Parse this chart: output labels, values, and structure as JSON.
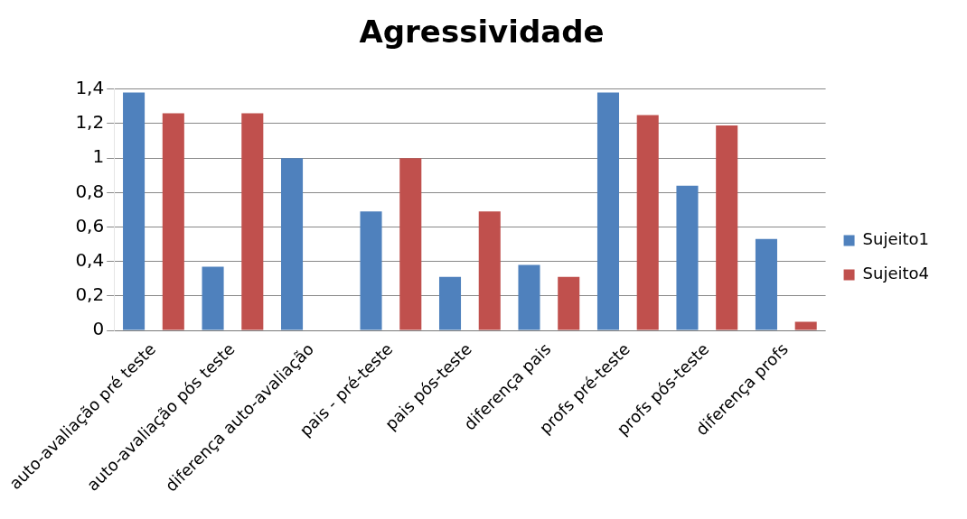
{
  "chart_data": {
    "type": "bar",
    "title": "Agressividade",
    "categories": [
      "auto-avaliação pré teste",
      "auto-avaliação pós teste",
      "diferença auto-avaliação",
      "pais - pré-teste",
      "pais pós-teste",
      "diferença pais",
      "profs pré-teste",
      "profs pós-teste",
      "diferença profs"
    ],
    "series": [
      {
        "name": "Sujeito1",
        "color": "#4f81bd",
        "values": [
          1.38,
          0.37,
          1.0,
          0.69,
          0.31,
          0.38,
          1.38,
          0.84,
          0.53
        ]
      },
      {
        "name": "Sujeito4",
        "color": "#c0504d",
        "values": [
          1.26,
          1.26,
          0,
          1.0,
          0.69,
          0.31,
          1.25,
          1.19,
          0.05
        ]
      }
    ],
    "ylim": [
      0,
      1.4
    ],
    "yticks": [
      0,
      {
        "value": 0.2,
        "label": "0,2"
      },
      {
        "value": 0.4,
        "label": "0,4"
      },
      {
        "value": 0.6,
        "label": "0,6"
      },
      {
        "value": 0.8,
        "label": "0,8"
      },
      1,
      {
        "value": 1.2,
        "label": "1,2"
      },
      {
        "value": 1.4,
        "label": "1,4"
      }
    ],
    "grid": "y",
    "legend": "right"
  }
}
